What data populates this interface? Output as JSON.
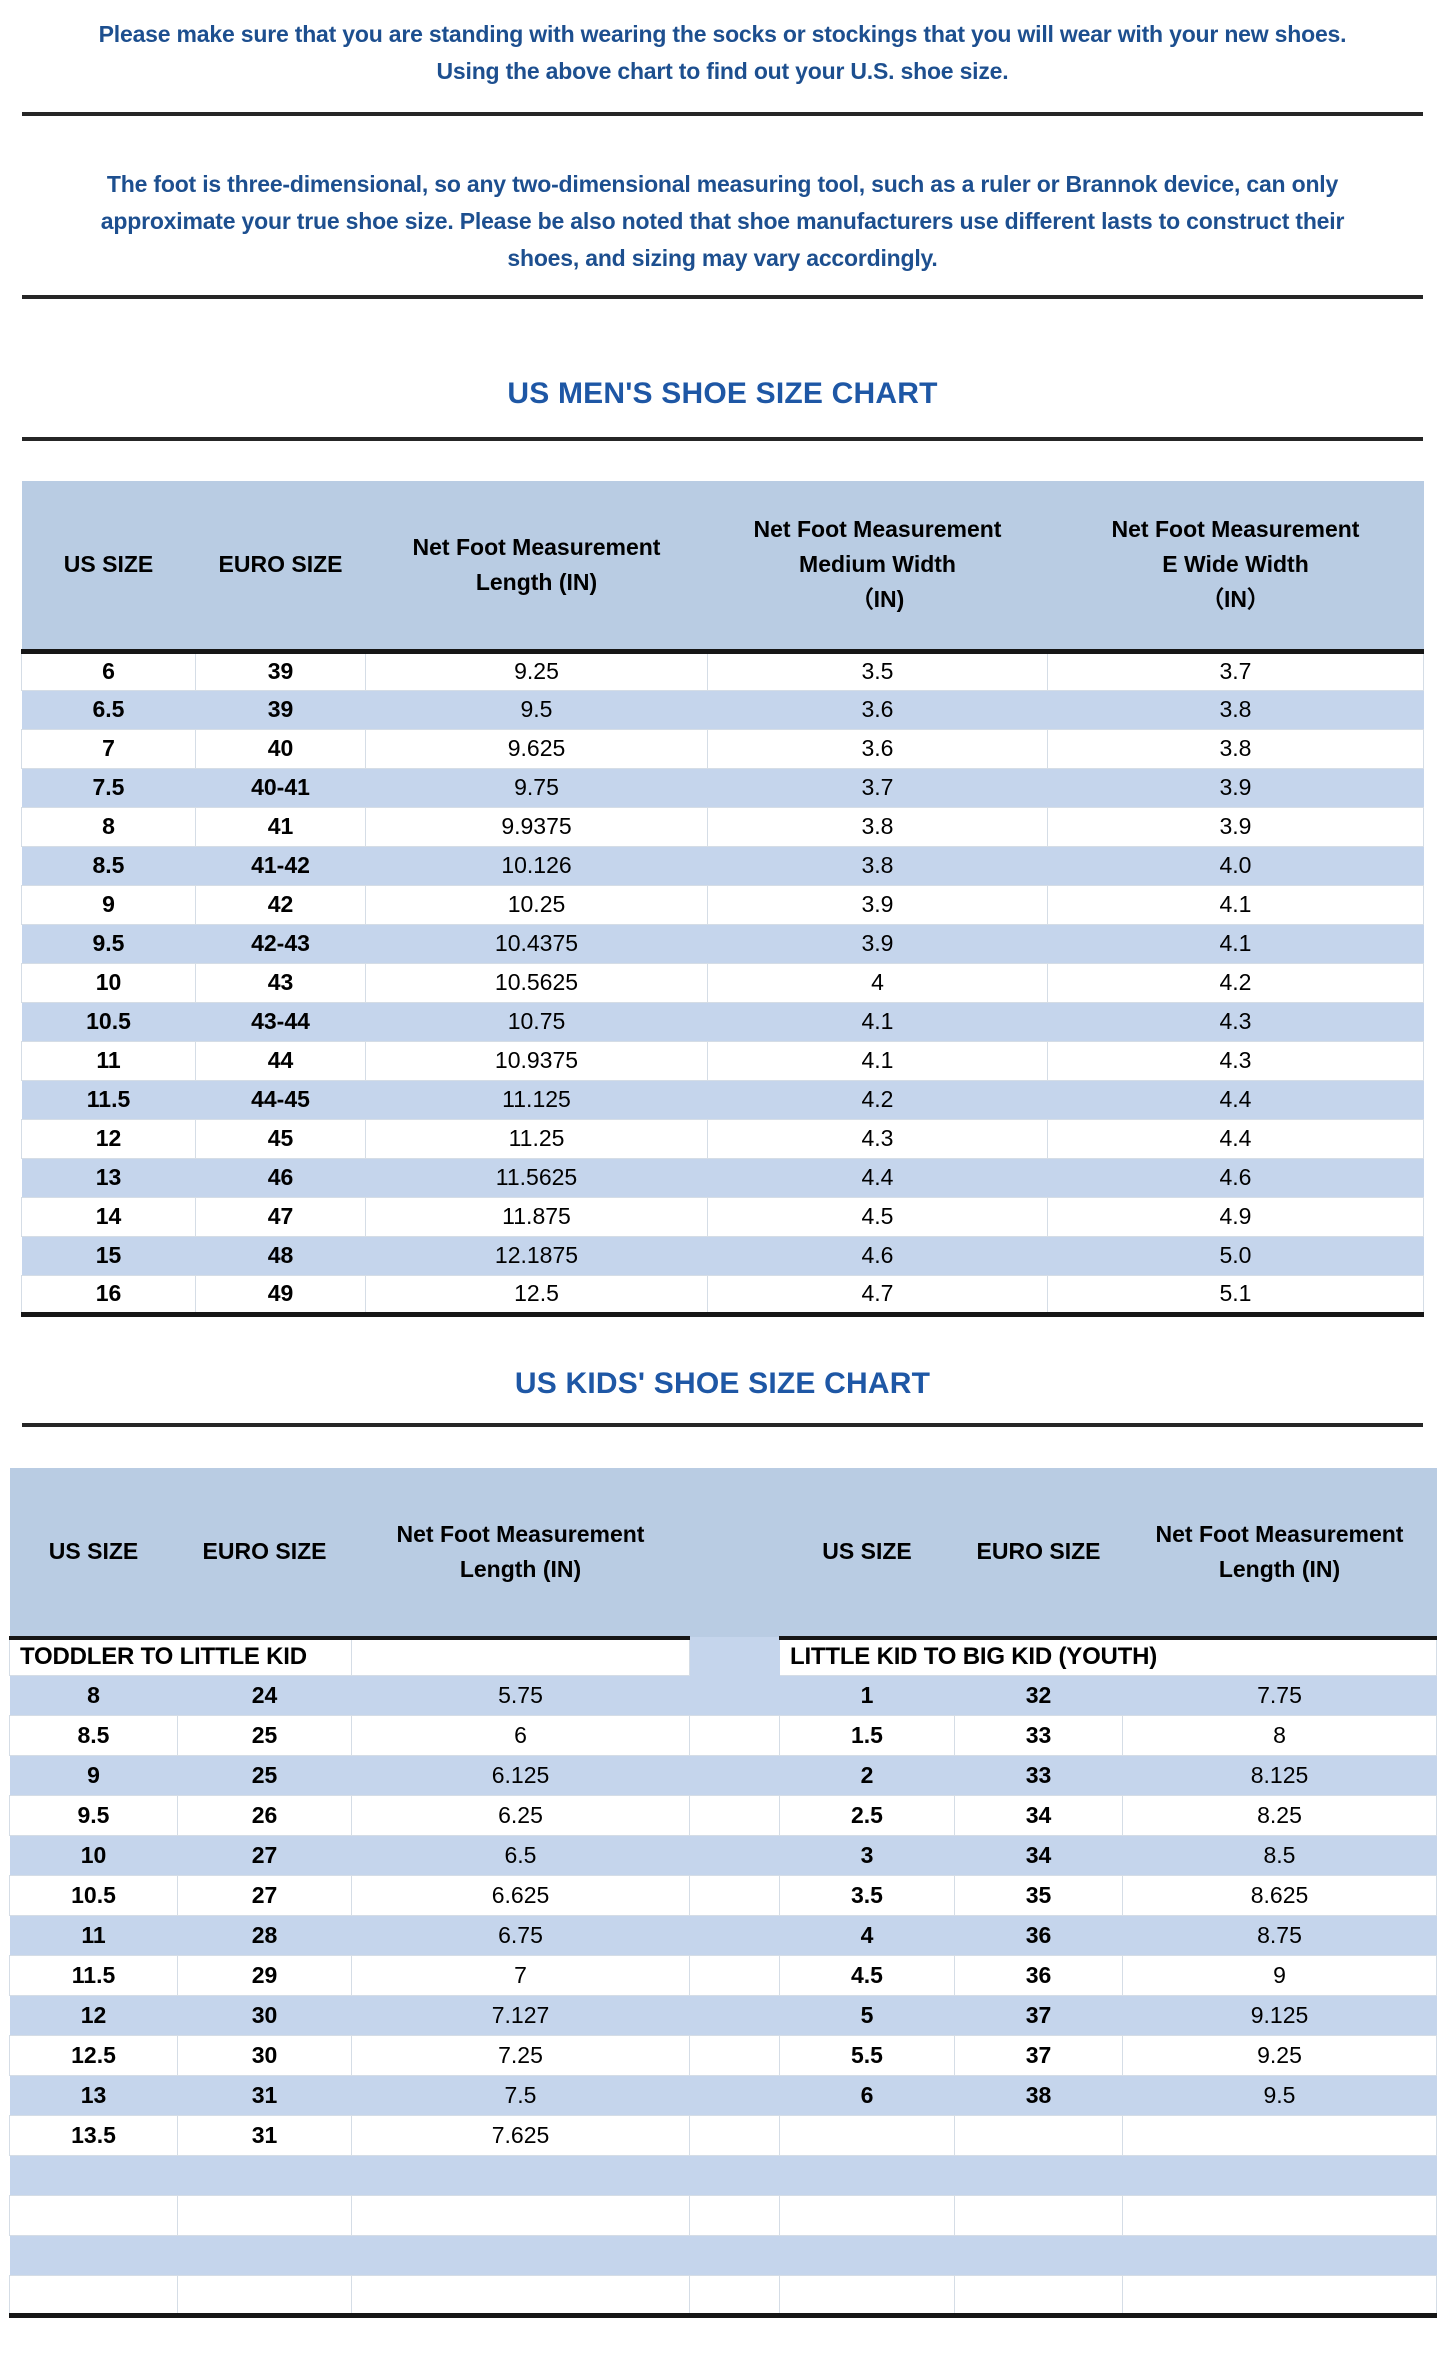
{
  "intro": {
    "paragraph1": "Please make sure that you are standing with wearing the socks or stockings that you will wear with your new shoes.\nUsing the above chart to find out your U.S. shoe size.",
    "paragraph2": "The foot is three-dimensional, so any two-dimensional measuring tool, such as a ruler or Brannok device, can only\napproximate your true shoe size. Please be also noted that shoe manufacturers use different lasts to construct their\nshoes, and sizing may vary accordingly."
  },
  "mens_chart": {
    "title": "US MEN'S SHOE SIZE CHART",
    "columns": [
      "US SIZE",
      "EURO SIZE",
      "Net Foot Measurement\nLength (IN)",
      "Net Foot Measurement\nMedium Width\n（IN)",
      "Net Foot Measurement\nE Wide Width\n（IN）"
    ],
    "rows": [
      [
        "6",
        "39",
        "9.25",
        "3.5",
        "3.7"
      ],
      [
        "6.5",
        "39",
        "9.5",
        "3.6",
        "3.8"
      ],
      [
        "7",
        "40",
        "9.625",
        "3.6",
        "3.8"
      ],
      [
        "7.5",
        "40-41",
        "9.75",
        "3.7",
        "3.9"
      ],
      [
        "8",
        "41",
        "9.9375",
        "3.8",
        "3.9"
      ],
      [
        "8.5",
        "41-42",
        "10.126",
        "3.8",
        "4.0"
      ],
      [
        "9",
        "42",
        "10.25",
        "3.9",
        "4.1"
      ],
      [
        "9.5",
        "42-43",
        "10.4375",
        "3.9",
        "4.1"
      ],
      [
        "10",
        "43",
        "10.5625",
        "4",
        "4.2"
      ],
      [
        "10.5",
        "43-44",
        "10.75",
        "4.1",
        "4.3"
      ],
      [
        "11",
        "44",
        "10.9375",
        "4.1",
        "4.3"
      ],
      [
        "11.5",
        "44-45",
        "11.125",
        "4.2",
        "4.4"
      ],
      [
        "12",
        "45",
        "11.25",
        "4.3",
        "4.4"
      ],
      [
        "13",
        "46",
        "11.5625",
        "4.4",
        "4.6"
      ],
      [
        "14",
        "47",
        "11.875",
        "4.5",
        "4.9"
      ],
      [
        "15",
        "48",
        "12.1875",
        "4.6",
        "5.0"
      ],
      [
        "16",
        "49",
        "12.5",
        "4.7",
        "5.1"
      ]
    ]
  },
  "kids_chart": {
    "title": "US KIDS' SHOE SIZE CHART",
    "columns": [
      "US SIZE",
      "EURO SIZE",
      "Net Foot Measurement\nLength (IN)"
    ],
    "left_section": "TODDLER TO LITTLE KID",
    "right_section": "LITTLE KID TO BIG KID (YOUTH)",
    "left_rows": [
      [
        "8",
        "24",
        "5.75"
      ],
      [
        "8.5",
        "25",
        "6"
      ],
      [
        "9",
        "25",
        "6.125"
      ],
      [
        "9.5",
        "26",
        "6.25"
      ],
      [
        "10",
        "27",
        "6.5"
      ],
      [
        "10.5",
        "27",
        "6.625"
      ],
      [
        "11",
        "28",
        "6.75"
      ],
      [
        "11.5",
        "29",
        "7"
      ],
      [
        "12",
        "30",
        "7.127"
      ],
      [
        "12.5",
        "30",
        "7.25"
      ],
      [
        "13",
        "31",
        "7.5"
      ],
      [
        "13.5",
        "31",
        "7.625"
      ]
    ],
    "right_rows": [
      [
        "1",
        "32",
        "7.75"
      ],
      [
        "1.5",
        "33",
        "8"
      ],
      [
        "2",
        "33",
        "8.125"
      ],
      [
        "2.5",
        "34",
        "8.25"
      ],
      [
        "3",
        "34",
        "8.5"
      ],
      [
        "3.5",
        "35",
        "8.625"
      ],
      [
        "4",
        "36",
        "8.75"
      ],
      [
        "4.5",
        "36",
        "9"
      ],
      [
        "5",
        "37",
        "9.125"
      ],
      [
        "5.5",
        "37",
        "9.25"
      ],
      [
        "6",
        "38",
        "9.5"
      ]
    ],
    "trailing_empty_rows": 4
  },
  "colors": {
    "header_blue": "#b9cce3",
    "stripe_blue": "#c5d5ec",
    "title_blue": "#1e57a5",
    "paragraph_blue": "#1d4f8f",
    "rule_black": "#262626"
  }
}
